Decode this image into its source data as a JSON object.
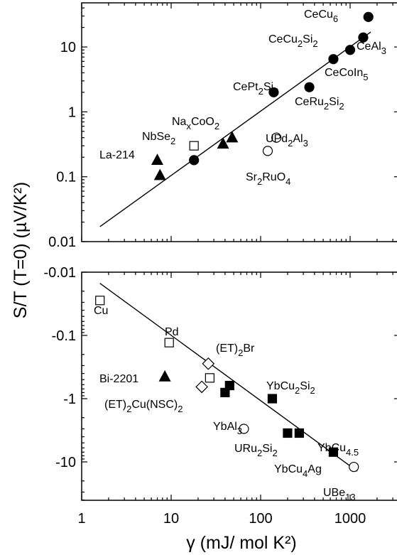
{
  "chart_data": [
    {
      "type": "scatter",
      "panel": "top",
      "scale": {
        "x": "log",
        "y": "log"
      },
      "xlim": [
        1,
        3000
      ],
      "ylim": [
        0.01,
        40
      ],
      "yticks": [
        0.01,
        0.1,
        1,
        10
      ],
      "ytick_labels": [
        "0.01",
        "0.1",
        "1",
        "10"
      ],
      "fit_line": {
        "x": [
          1.6,
          1700
        ],
        "y": [
          0.017,
          17
        ]
      },
      "points": [
        {
          "label": "CeCu6",
          "x": 1600,
          "y": 29,
          "marker": "circle",
          "filled": true
        },
        {
          "label": "CeAl3",
          "x": 1400,
          "y": 14,
          "marker": "circle",
          "filled": true
        },
        {
          "label": "CeCu2Si2",
          "x": 1000,
          "y": 9,
          "marker": "circle",
          "filled": true
        },
        {
          "label": "CeCoIn5",
          "x": 650,
          "y": 6.5,
          "marker": "circle",
          "filled": true
        },
        {
          "label": "CeRu2Si2",
          "x": 350,
          "y": 2.4,
          "marker": "circle",
          "filled": true
        },
        {
          "label": "CePt2Si2",
          "x": 140,
          "y": 2,
          "marker": "circle",
          "filled": true
        },
        {
          "label": "Sr2RuO4",
          "x": 18,
          "y": 0.18,
          "marker": "circle",
          "filled": true
        },
        {
          "label": "NaxCoO2",
          "x": 48,
          "y": 0.4,
          "marker": "triangle",
          "filled": true
        },
        {
          "label": "NaxCoO2",
          "x": 38,
          "y": 0.32,
          "marker": "triangle",
          "filled": true
        },
        {
          "label": "La-214",
          "x": 7,
          "y": 0.18,
          "marker": "triangle",
          "filled": true
        },
        {
          "label": "La-214",
          "x": 7.5,
          "y": 0.105,
          "marker": "triangle",
          "filled": true
        },
        {
          "label": "NbSe2",
          "x": 18,
          "y": 0.3,
          "marker": "square",
          "filled": false
        },
        {
          "label": "UPd2Al3",
          "x": 150,
          "y": 0.4,
          "marker": "circle",
          "filled": false
        },
        {
          "label": "UPd2Al3",
          "x": 120,
          "y": 0.25,
          "marker": "circle",
          "filled": false
        }
      ],
      "annotations": [
        {
          "text": "CeCu",
          "sub": "6",
          "rest": ""
        },
        {
          "text": "CeCu",
          "sub": "2",
          "rest": "Si",
          "sub2": "2"
        },
        {
          "text": "CeAl",
          "sub": "3",
          "rest": ""
        },
        {
          "text": "CeCoIn",
          "sub": "5",
          "rest": ""
        },
        {
          "text": "CePt",
          "sub": "2",
          "rest": "Si",
          "sub2": "2"
        },
        {
          "text": "CeRu",
          "sub": "2",
          "rest": "Si",
          "sub2": "2"
        },
        {
          "text": "Na",
          "sub": "x",
          "rest": "CoO",
          "sub2": "2"
        },
        {
          "text": "NbSe",
          "sub": "2",
          "rest": ""
        },
        {
          "text": "UPd",
          "sub": "2",
          "rest": "Al",
          "sub2": "3"
        },
        {
          "text": "La-214",
          "sub": "",
          "rest": ""
        },
        {
          "text": "Sr",
          "sub": "2",
          "rest": "RuO",
          "sub2": "4"
        }
      ]
    },
    {
      "type": "scatter",
      "panel": "bottom",
      "scale": {
        "x": "log",
        "y": "log"
      },
      "ylim": [
        -0.01,
        -40
      ],
      "yticks": [
        -0.01,
        -0.1,
        -1,
        -10
      ],
      "ytick_labels": [
        "-0.01",
        "-0.1",
        "-1",
        "-10"
      ],
      "fit_line": {
        "x": [
          1.6,
          1200
        ],
        "y": [
          -0.015,
          -14
        ]
      },
      "points": [
        {
          "label": "Cu",
          "x": 1.6,
          "y": -0.028,
          "marker": "square",
          "filled": false
        },
        {
          "label": "Pd",
          "x": 9.5,
          "y": -0.13,
          "marker": "square",
          "filled": false
        },
        {
          "label": "(ET)2Br",
          "x": 26,
          "y": -0.28,
          "marker": "diamond",
          "filled": false
        },
        {
          "label": "(ET)2Cu(NSC)2",
          "x": 22,
          "y": -0.65,
          "marker": "diamond",
          "filled": false
        },
        {
          "label": "(ET)2Cu(NSC)2",
          "x": 27,
          "y": -0.47,
          "marker": "square",
          "filled": false
        },
        {
          "label": "Bi-2201",
          "x": 8.5,
          "y": -0.45,
          "marker": "triangle",
          "filled": true
        },
        {
          "label": "YbAl3",
          "x": 40,
          "y": -0.8,
          "marker": "square",
          "filled": true
        },
        {
          "label": "YbAl3",
          "x": 45,
          "y": -0.62,
          "marker": "square",
          "filled": true
        },
        {
          "label": "YbCu2Si2",
          "x": 135,
          "y": -1,
          "marker": "square",
          "filled": true
        },
        {
          "label": "YbCu4Ag",
          "x": 200,
          "y": -3.5,
          "marker": "square",
          "filled": true
        },
        {
          "label": "YbCu4Ag",
          "x": 270,
          "y": -3.5,
          "marker": "square",
          "filled": true
        },
        {
          "label": "YbCu4.5",
          "x": 650,
          "y": -7,
          "marker": "square",
          "filled": true
        },
        {
          "label": "URu2Si2",
          "x": 65,
          "y": -3,
          "marker": "circle",
          "filled": false
        },
        {
          "label": "UBe13",
          "x": 1100,
          "y": -12,
          "marker": "circle",
          "filled": false
        }
      ],
      "annotations": [
        {
          "text": "Cu",
          "sub": "",
          "rest": ""
        },
        {
          "text": "Pd",
          "sub": "",
          "rest": ""
        },
        {
          "text": "(ET)",
          "sub": "2",
          "rest": "Br"
        },
        {
          "text": "Bi-2201",
          "sub": "",
          "rest": ""
        },
        {
          "text": "(ET)",
          "sub": "2",
          "rest": "Cu(NSC)",
          "sub2": "2"
        },
        {
          "text": "YbAl",
          "sub": "3",
          "rest": ""
        },
        {
          "text": "YbCu",
          "sub": "2",
          "rest": "Si",
          "sub2": "2"
        },
        {
          "text": "URu",
          "sub": "2",
          "rest": "Si",
          "sub2": "2"
        },
        {
          "text": "YbCu",
          "sub": "4",
          "rest": "Ag"
        },
        {
          "text": "YbCu",
          "sub": "4.5",
          "rest": ""
        },
        {
          "text": "UBe",
          "sub": "13",
          "rest": ""
        }
      ]
    }
  ],
  "axes": {
    "xlabel": "γ (mJ/ mol K²)",
    "ylabel": "S/T (T=0) (µV/K²)",
    "xticks": [
      1,
      10,
      100,
      1000
    ],
    "xtick_labels": [
      "1",
      "10",
      "100",
      "1000"
    ]
  }
}
